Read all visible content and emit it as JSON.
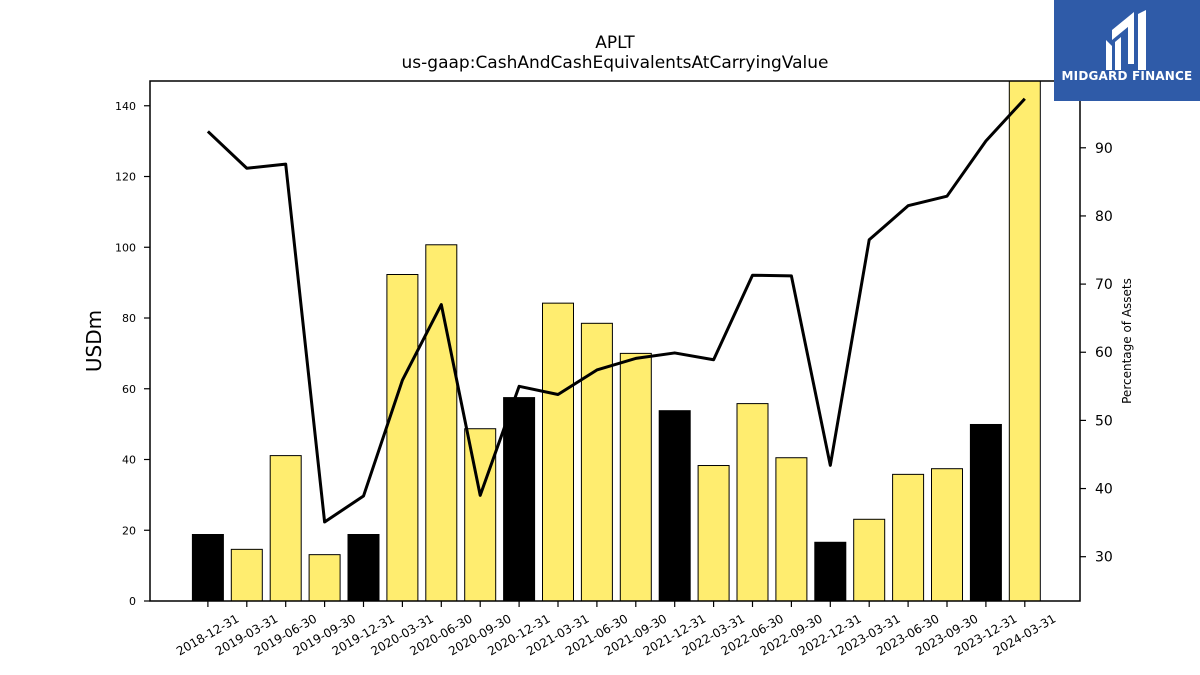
{
  "chart_data": {
    "type": "bar",
    "title": "APLT",
    "subtitle": "us-gaap:CashAndCashEquivalentsAtCarryingValue",
    "ylabel": "USDm",
    "y2label": "Percentage of Assets",
    "ylim": [
      0,
      147
    ],
    "y2lim": [
      23.5,
      99.8
    ],
    "yticks": [
      0,
      20,
      40,
      60,
      80,
      100,
      120,
      140
    ],
    "y2ticks": [
      30,
      40,
      50,
      60,
      70,
      80,
      90
    ],
    "categories": [
      "2018-12-31",
      "2019-03-31",
      "2019-06-30",
      "2019-09-30",
      "2019-12-31",
      "2020-03-31",
      "2020-06-30",
      "2020-09-30",
      "2020-12-31",
      "2021-03-31",
      "2021-06-30",
      "2021-09-30",
      "2021-12-31",
      "2022-03-31",
      "2022-06-30",
      "2022-09-30",
      "2022-12-31",
      "2023-03-31",
      "2023-06-30",
      "2023-09-30",
      "2023-12-31",
      "2024-03-31"
    ],
    "series": [
      {
        "type": "bar",
        "axis": "left",
        "values": [
          18.8,
          14.6,
          41.1,
          13.1,
          18.8,
          92.3,
          100.7,
          48.7,
          57.5,
          84.2,
          78.5,
          70.0,
          53.8,
          38.3,
          55.8,
          40.5,
          16.6,
          23.1,
          35.8,
          37.4,
          49.9,
          147.0
        ]
      },
      {
        "type": "line",
        "axis": "right",
        "values": [
          92.4,
          87.0,
          87.6,
          35.1,
          38.9,
          55.9,
          67.0,
          39.0,
          55.0,
          53.8,
          57.4,
          59.1,
          59.9,
          58.9,
          71.3,
          71.2,
          43.4,
          76.5,
          81.5,
          82.9,
          91.0,
          97.2
        ]
      }
    ],
    "bar_colors": [
      "#000000",
      "#ffed6f",
      "#ffed6f",
      "#ffed6f",
      "#000000",
      "#ffed6f",
      "#ffed6f",
      "#ffed6f",
      "#000000",
      "#ffed6f",
      "#ffed6f",
      "#ffed6f",
      "#000000",
      "#ffed6f",
      "#ffed6f",
      "#ffed6f",
      "#000000",
      "#ffed6f",
      "#ffed6f",
      "#ffed6f",
      "#000000",
      "#ffed6f"
    ],
    "line_color": "#000000",
    "grid": false,
    "legend": "none"
  },
  "logo": {
    "text": "MIDGARD FINANCE",
    "background": "#2f5ba8"
  }
}
